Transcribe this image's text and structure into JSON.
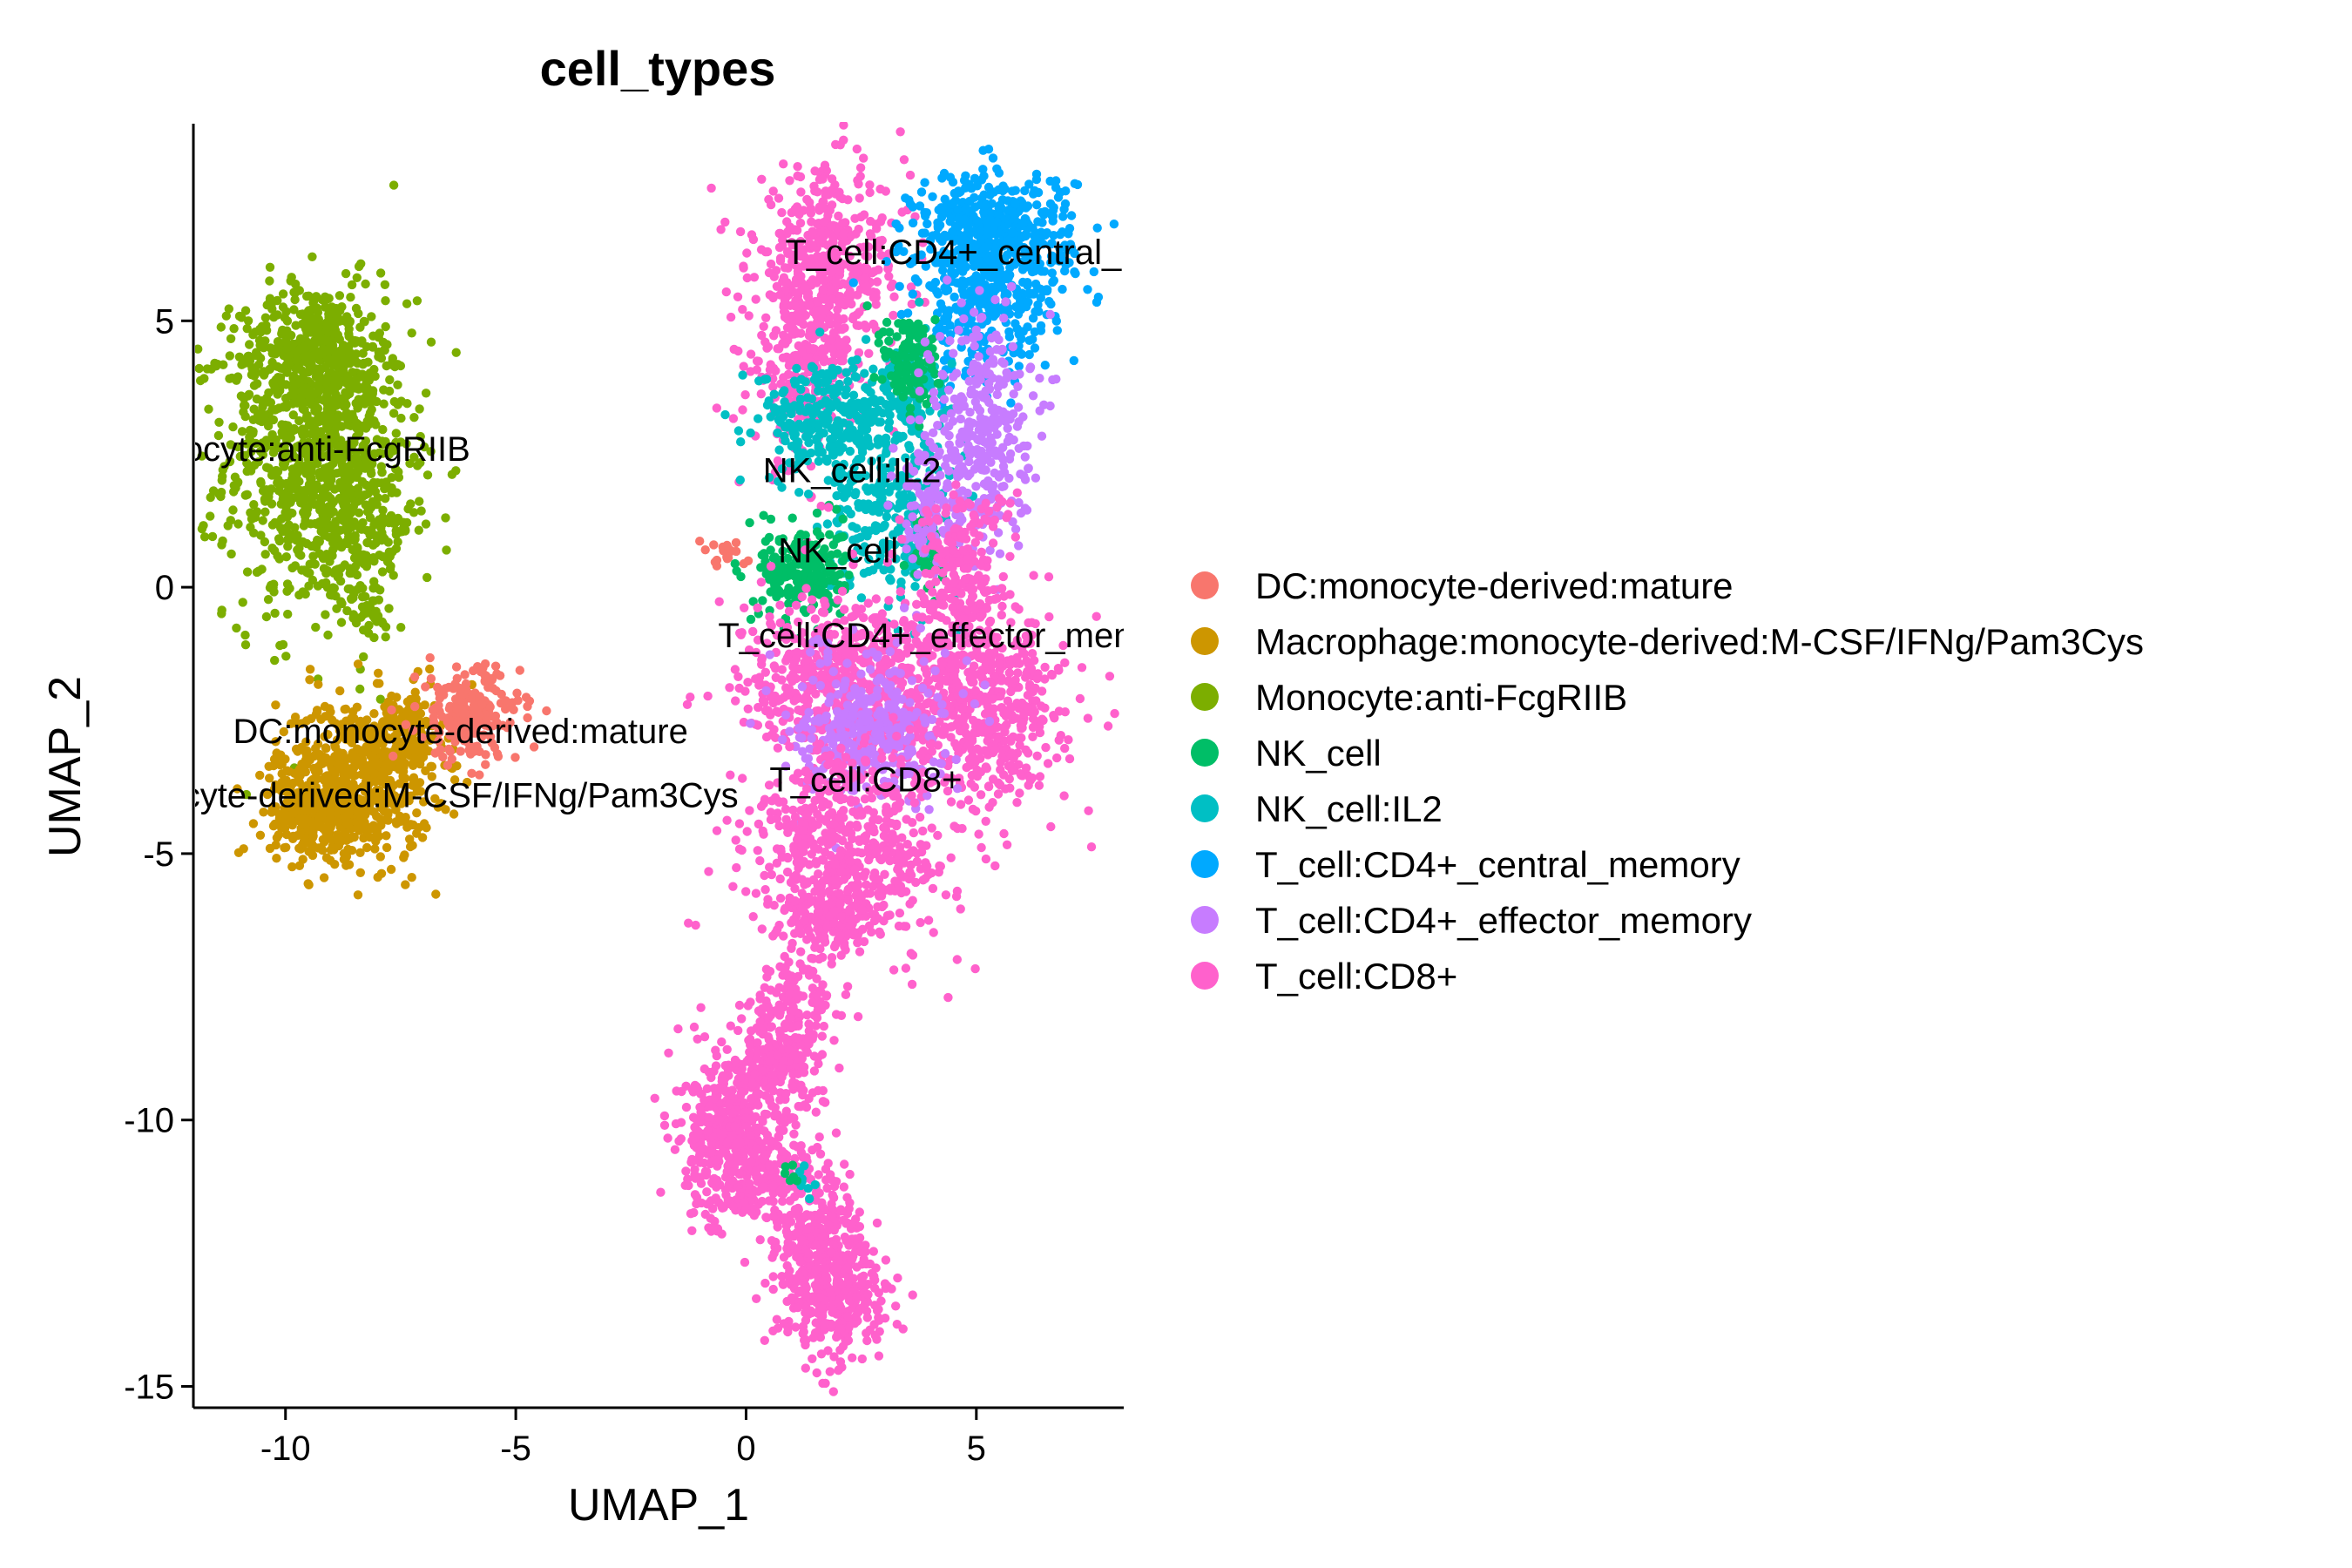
{
  "chart_data": {
    "type": "scatter",
    "title": "cell_types",
    "xlabel": "UMAP_1",
    "ylabel": "UMAP_2",
    "xlim": [
      -12,
      8.2
    ],
    "ylim": [
      -15.4,
      8.7
    ],
    "xticks": [
      -10,
      -5,
      0,
      5
    ],
    "yticks": [
      -15,
      -10,
      -5,
      0,
      5
    ],
    "legend_position": "right",
    "grid": false,
    "series": [
      {
        "name": "DC:monocyte-derived:mature",
        "color": "#F8766D"
      },
      {
        "name": "Macrophage:monocyte-derived:M-CSF/IFNg/Pam3Cys",
        "color": "#CD9600"
      },
      {
        "name": "Monocyte:anti-FcgRIIB",
        "color": "#7CAE00"
      },
      {
        "name": "NK_cell",
        "color": "#00BE67"
      },
      {
        "name": "NK_cell:IL2",
        "color": "#00BFC4"
      },
      {
        "name": "T_cell:CD4+_central_memory",
        "color": "#00A9FF"
      },
      {
        "name": "T_cell:CD4+_effector_memory",
        "color": "#C77CFF"
      },
      {
        "name": "T_cell:CD8+",
        "color": "#FF61CC"
      }
    ],
    "cluster_labels": [
      {
        "text": "T_cell:CD4+_central_",
        "x": 4.5,
        "y": 6.3
      },
      {
        "text": "ocyte:anti-FcgRIIB",
        "x": -9.1,
        "y": 2.6
      },
      {
        "text": "NK_cell:IL2",
        "x": 2.3,
        "y": 2.2
      },
      {
        "text": "NK_cell",
        "x": 2.0,
        "y": 0.7
      },
      {
        "text": "T_cell:CD4+_effector_mem",
        "x": 4.0,
        "y": -0.9
      },
      {
        "text": "DC:monocyte-derived:mature",
        "x": -6.2,
        "y": -2.7
      },
      {
        "text": "cyte-derived:M-CSF/IFNg/Pam3Cys",
        "x": -6.2,
        "y": -3.9
      },
      {
        "text": "T_cell:CD8+",
        "x": 2.6,
        "y": -3.6
      }
    ]
  }
}
